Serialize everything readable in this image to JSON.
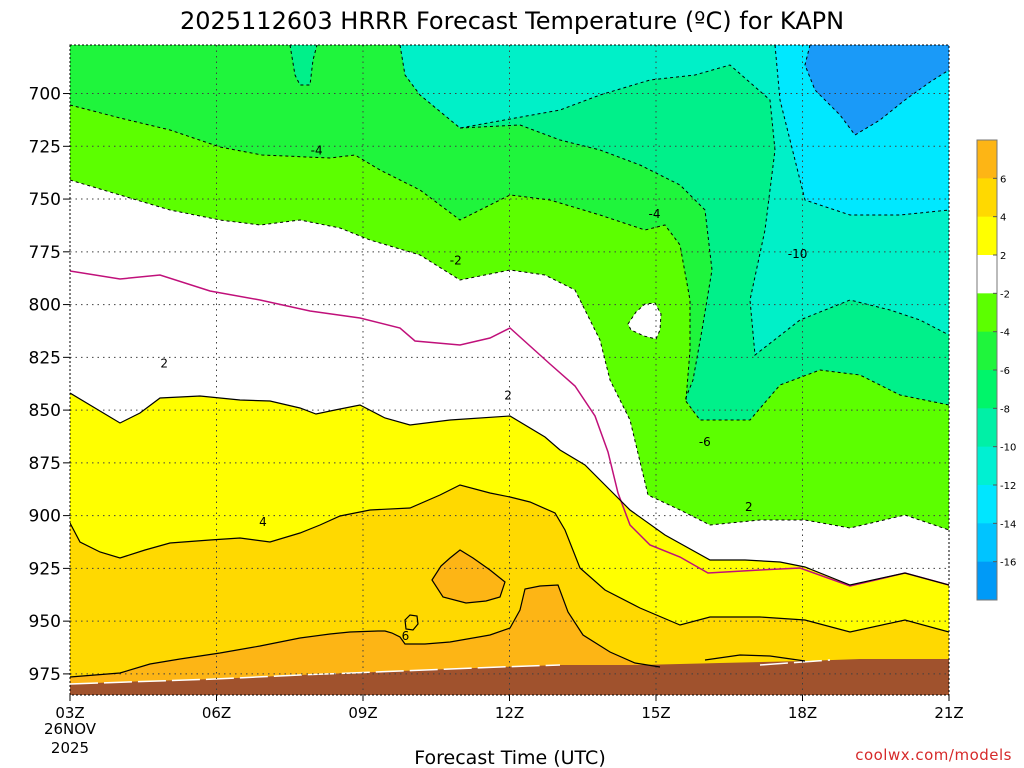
{
  "chart_data": {
    "type": "contour",
    "title": "2025112603 HRRR Forecast Temperature (ºC) for KAPN",
    "xlabel": "Forecast Time (UTC)",
    "x_ticks": [
      "03Z",
      "06Z",
      "09Z",
      "12Z",
      "15Z",
      "18Z",
      "21Z"
    ],
    "x_hours": [
      3,
      6,
      9,
      12,
      15,
      18,
      21
    ],
    "x_range": [
      3,
      21
    ],
    "date_line1": "26NOV",
    "date_line2": "2025",
    "ylabel": "",
    "y_ticks": [
      700,
      725,
      750,
      775,
      800,
      825,
      850,
      875,
      900,
      925,
      950,
      975
    ],
    "y_range_hpa": [
      677,
      985
    ],
    "grid": true,
    "legend_position": "right",
    "colorbar": {
      "labels": [
        "6",
        "4",
        "2",
        "-2",
        "-4",
        "-6",
        "-8",
        "-10",
        "-12",
        "-14",
        "-16"
      ],
      "colors": [
        "#fdb515",
        "#ffd900",
        "#ffff00",
        "#ffffff",
        "#5cff00",
        "#1ff53c",
        "#00f56a",
        "#00f0a6",
        "#00f0d2",
        "#00e6ff",
        "#00c4ff",
        "#009af7"
      ]
    },
    "fill_levels": {
      "blue_-12": "#1a9af8",
      "cyan_-10": "#00e8ff",
      "aqua_-8": "#00f0c8",
      "green_-6": "#00f08a",
      "green_-4": "#1ff53c",
      "lime_-2": "#5cff00",
      "white_0": "#ffffff",
      "yellow_2": "#ffff00",
      "gold_4": "#ffd900",
      "orange_6": "#fdb515",
      "ground": "#a0522d"
    },
    "contour_labels": [
      {
        "text": "-4",
        "hour": 8.05,
        "p": 727
      },
      {
        "text": "-4",
        "hour": 14.97,
        "p": 757
      },
      {
        "text": "-2",
        "hour": 10.9,
        "p": 779
      },
      {
        "text": "-10",
        "hour": 17.9,
        "p": 776
      },
      {
        "text": "-6",
        "hour": 16.0,
        "p": 865
      },
      {
        "text": "2",
        "hour": 4.93,
        "p": 828
      },
      {
        "text": "2",
        "hour": 11.97,
        "p": 843
      },
      {
        "text": "2",
        "hour": 16.9,
        "p": 896
      },
      {
        "text": "4",
        "hour": 6.95,
        "p": 903
      },
      {
        "text": "6",
        "hour": 9.87,
        "p": 957
      }
    ]
  },
  "credit": "coolwx.com/models"
}
